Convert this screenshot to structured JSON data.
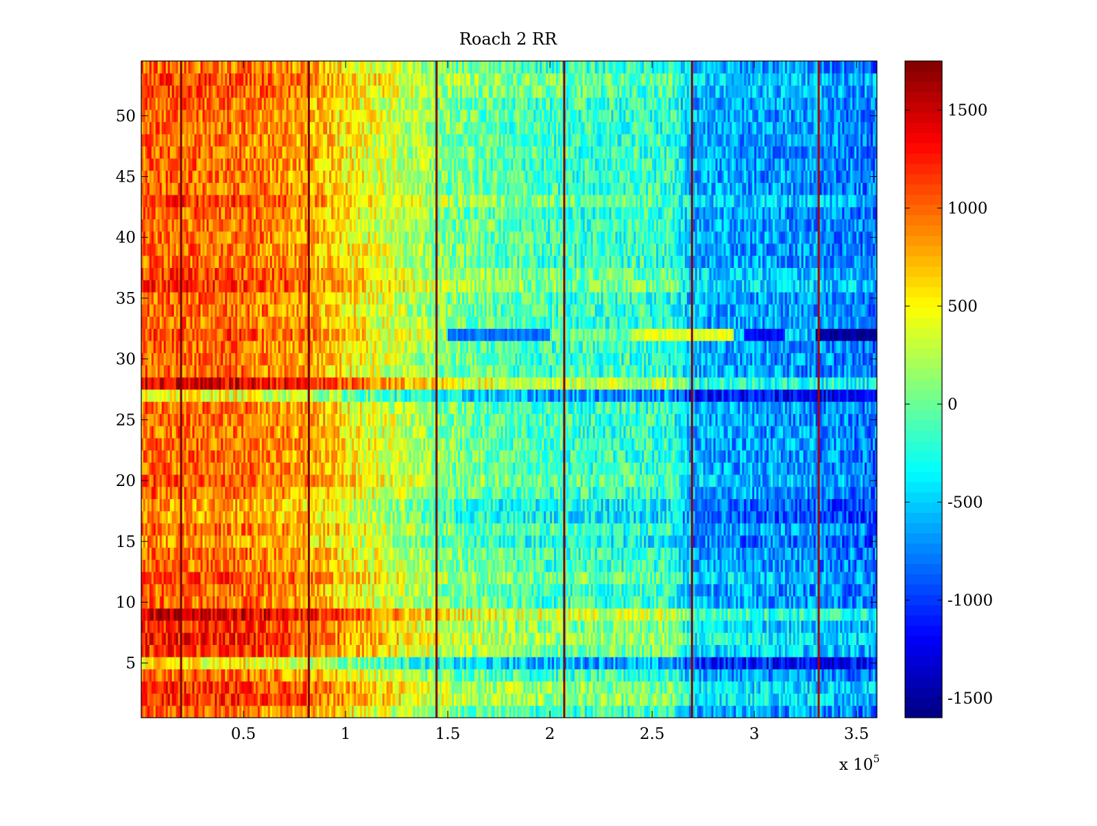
{
  "chart_data": {
    "type": "heatmap",
    "title": "Roach 2 RR",
    "xlabel": "",
    "ylabel": "",
    "x_multiplier_label": "x 10",
    "x_multiplier_exponent": "5",
    "xlim": [
      0.0,
      3.6
    ],
    "ylim": [
      0.5,
      54.5
    ],
    "rows": 54,
    "columns": 360,
    "x_ticks": [
      0.5,
      1,
      1.5,
      2,
      2.5,
      3,
      3.5
    ],
    "x_tick_labels": [
      "0.5",
      "1",
      "1.5",
      "2",
      "2.5",
      "3",
      "3.5"
    ],
    "y_ticks": [
      5,
      10,
      15,
      20,
      25,
      30,
      35,
      40,
      45,
      50
    ],
    "y_tick_labels": [
      "5",
      "10",
      "15",
      "20",
      "25",
      "30",
      "35",
      "40",
      "45",
      "50"
    ],
    "colorbar": {
      "colormap": "jet",
      "limits": [
        -1600,
        1750
      ],
      "ticks": [
        -1500,
        -1000,
        -500,
        0,
        500,
        1000,
        1500
      ],
      "tick_labels": [
        "-1500",
        "-1000",
        "-500",
        "0",
        "500",
        "1000",
        "1500"
      ]
    },
    "column_trend": [
      {
        "x": 0.0,
        "value": 1000
      },
      {
        "x": 0.5,
        "value": 950
      },
      {
        "x": 0.8,
        "value": 800
      },
      {
        "x": 1.0,
        "value": 550
      },
      {
        "x": 1.3,
        "value": 250
      },
      {
        "x": 1.5,
        "value": 50
      },
      {
        "x": 2.0,
        "value": -150
      },
      {
        "x": 2.6,
        "value": -200
      },
      {
        "x": 2.7,
        "value": -600
      },
      {
        "x": 3.3,
        "value": -700
      },
      {
        "x": 3.6,
        "value": -800
      }
    ],
    "vertical_lines": [
      {
        "x": 0.195,
        "value": 1750
      },
      {
        "x": 0.82,
        "value": 1750
      },
      {
        "x": 1.445,
        "value": 1750
      },
      {
        "x": 2.07,
        "value": 1750
      },
      {
        "x": 2.695,
        "value": 1700
      },
      {
        "x": 3.315,
        "value": 1600
      }
    ],
    "row_offsets": [
      {
        "row": 2,
        "offset": 250
      },
      {
        "row": 3,
        "offset": 250
      },
      {
        "row": 5,
        "offset": -450
      },
      {
        "row": 6,
        "offset": 200
      },
      {
        "row": 7,
        "offset": 300
      },
      {
        "row": 8,
        "offset": 200
      },
      {
        "row": 9,
        "offset": 500
      },
      {
        "row": 12,
        "offset": 150
      },
      {
        "row": 15,
        "offset": -150
      },
      {
        "row": 17,
        "offset": -200
      },
      {
        "row": 18,
        "offset": -200
      },
      {
        "row": 20,
        "offset": 100
      },
      {
        "row": 27,
        "offset": -500
      },
      {
        "row": 28,
        "offset": 450
      },
      {
        "row": 32,
        "offset": 150
      },
      {
        "row": 36,
        "offset": 200
      },
      {
        "row": 37,
        "offset": 150
      },
      {
        "row": 43,
        "offset": 150
      },
      {
        "row": 52,
        "offset": 100
      },
      {
        "row": 53,
        "offset": 150
      }
    ],
    "row32_segments": [
      {
        "x_start": 1.5,
        "x_end": 2.0,
        "value": -800
      },
      {
        "x_start": 2.4,
        "x_end": 2.9,
        "value": 400
      },
      {
        "x_start": 2.95,
        "x_end": 3.15,
        "value": -1200
      },
      {
        "x_start": 3.3,
        "x_end": 3.6,
        "value": -1500
      }
    ]
  }
}
